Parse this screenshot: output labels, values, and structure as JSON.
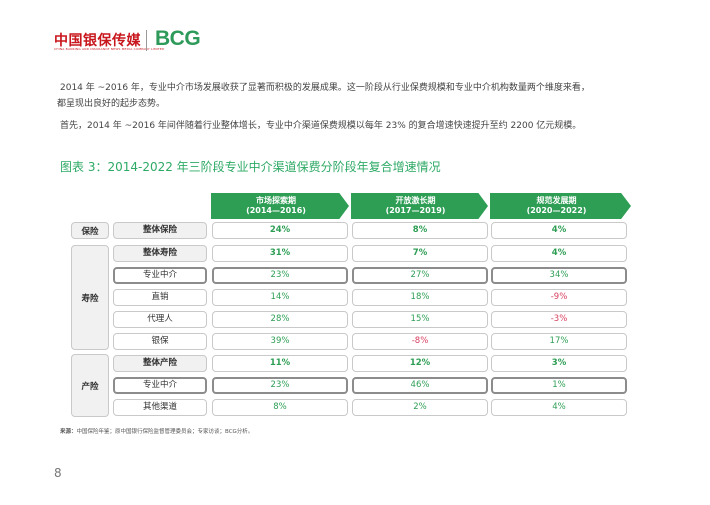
{
  "header": {
    "logo_cn": "中国银保传媒",
    "logo_cn_sub": "CHINA BANKING AND INSURANCE NEWS MEDIA COMPANY LIMITED",
    "logo_bcg": "BCG"
  },
  "body": {
    "p1_line1": "2014 年 ~2016 年，专业中介市场发展收获了显著而积极的发展成果。这一阶段从行业保费规模和专业中介机构数量两个维度来看，",
    "p1_line2": "都呈现出良好的起步态势。",
    "p2": "首先，2014 年 ~2016 年间伴随着行业整体增长，专业中介渠道保费规模以每年 23% 的复合增速快速提升至约 2200 亿元规模。"
  },
  "figure": {
    "title": "图表 3：2014-2022 年三阶段专业中介渠道保费分阶段年复合增速情况"
  },
  "table": {
    "columns": [
      {
        "name": "市场探索期",
        "period": "(2014—2016)"
      },
      {
        "name": "开放激长期",
        "period": "(2017—2019)"
      },
      {
        "name": "规范发展期",
        "period": "(2020—2022)"
      }
    ],
    "groups": [
      {
        "label": "保险"
      },
      {
        "label": "寿险"
      },
      {
        "label": "产险"
      }
    ],
    "rows": [
      {
        "label": "整体保险",
        "values": [
          "24%",
          "8%",
          "4%"
        ]
      },
      {
        "label": "整体寿险",
        "values": [
          "31%",
          "7%",
          "4%"
        ]
      },
      {
        "label": "专业中介",
        "values": [
          "23%",
          "27%",
          "34%"
        ]
      },
      {
        "label": "直销",
        "values": [
          "14%",
          "18%",
          "-9%"
        ]
      },
      {
        "label": "代理人",
        "values": [
          "28%",
          "15%",
          "-3%"
        ]
      },
      {
        "label": "银保",
        "values": [
          "39%",
          "-8%",
          "17%"
        ]
      },
      {
        "label": "整体产险",
        "values": [
          "11%",
          "12%",
          "3%"
        ]
      },
      {
        "label": "专业中介",
        "values": [
          "23%",
          "46%",
          "1%"
        ]
      },
      {
        "label": "其他渠道",
        "values": [
          "8%",
          "2%",
          "4%"
        ]
      }
    ]
  },
  "footer": {
    "source_label": "来源：",
    "source_text": "中国保险年鉴；原中国银行保险监督管理委员会；专家访谈；BCG分析。",
    "page_number": "8"
  },
  "colors": {
    "green": "#2e9e55",
    "red": "#d84060",
    "brand_red": "#c8161d"
  }
}
